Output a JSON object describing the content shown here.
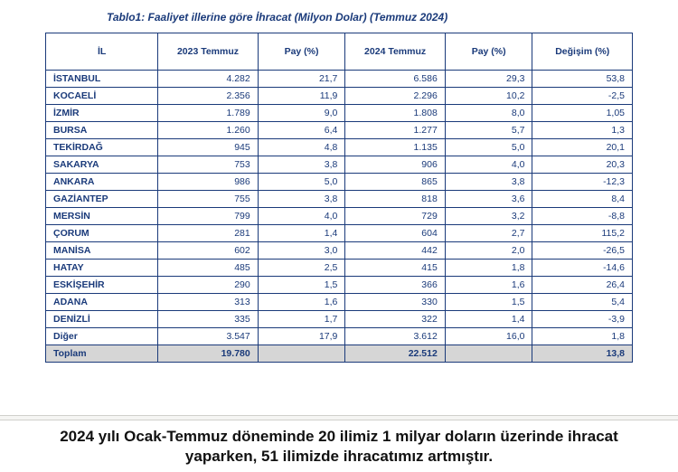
{
  "title": "Tablo1: Faaliyet illerine göre İhracat (Milyon Dolar) (Temmuz 2024)",
  "columns": [
    "İL",
    "2023 Temmuz",
    "Pay (%)",
    "2024 Temmuz",
    "Pay (%)",
    "Değişim (%)"
  ],
  "rows": [
    [
      "İSTANBUL",
      "4.282",
      "21,7",
      "6.586",
      "29,3",
      "53,8"
    ],
    [
      "KOCAELİ",
      "2.356",
      "11,9",
      "2.296",
      "10,2",
      "-2,5"
    ],
    [
      "İZMİR",
      "1.789",
      "9,0",
      "1.808",
      "8,0",
      "1,05"
    ],
    [
      "BURSA",
      "1.260",
      "6,4",
      "1.277",
      "5,7",
      "1,3"
    ],
    [
      "TEKİRDAĞ",
      "945",
      "4,8",
      "1.135",
      "5,0",
      "20,1"
    ],
    [
      "SAKARYA",
      "753",
      "3,8",
      "906",
      "4,0",
      "20,3"
    ],
    [
      "ANKARA",
      "986",
      "5,0",
      "865",
      "3,8",
      "-12,3"
    ],
    [
      "GAZİANTEP",
      "755",
      "3,8",
      "818",
      "3,6",
      "8,4"
    ],
    [
      "MERSİN",
      "799",
      "4,0",
      "729",
      "3,2",
      "-8,8"
    ],
    [
      "ÇORUM",
      "281",
      "1,4",
      "604",
      "2,7",
      "115,2"
    ],
    [
      "MANİSA",
      "602",
      "3,0",
      "442",
      "2,0",
      "-26,5"
    ],
    [
      "HATAY",
      "485",
      "2,5",
      "415",
      "1,8",
      "-14,6"
    ],
    [
      "ESKİŞEHİR",
      "290",
      "1,5",
      "366",
      "1,6",
      "26,4"
    ],
    [
      "ADANA",
      "313",
      "1,6",
      "330",
      "1,5",
      "5,4"
    ],
    [
      "DENİZLİ",
      "335",
      "1,7",
      "322",
      "1,4",
      "-3,9"
    ],
    [
      "Diğer",
      "3.547",
      "17,9",
      "3.612",
      "16,0",
      "1,8"
    ]
  ],
  "total": [
    "Toplam",
    "19.780",
    "",
    "22.512",
    "",
    "13,8"
  ],
  "footer": "2024 yılı Ocak-Temmuz döneminde 20 ilimiz 1 milyar doların üzerinde ihracat yaparken, 51 ilimizde ihracatımız artmıştır.",
  "style": {
    "brand_color": "#1a3a7a",
    "total_bg": "#d6d6d6",
    "border_color": "#1a3a7a",
    "bg": "#ffffff",
    "title_fontsize": 12,
    "cell_fontsize": 10.5,
    "footer_fontsize": 17,
    "col_widths_pct": [
      18,
      16,
      14,
      16,
      14,
      16
    ],
    "col_align": [
      "left",
      "right",
      "right",
      "right",
      "right",
      "right"
    ]
  }
}
